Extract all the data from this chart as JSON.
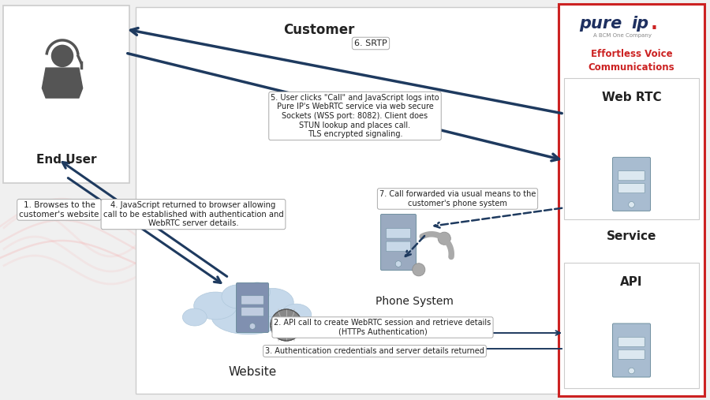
{
  "bg_color": "#f0f0f0",
  "arrow_color": "#1e3a5f",
  "red_border": "#cc2222",
  "server_color": "#a8bcd0",
  "server_slot_color": "#dce8f0",
  "cloud_color": "#c5d8ea",
  "cloud_edge": "#b0c8dc",
  "text_dark": "#222222",
  "text_red": "#cc2222",
  "text_pureip": "#1e3060",
  "label_1": "1. Browses to the\ncustomer's website",
  "label_2": "2. API call to create WebRTC session and retrieve details\n(HTTPs Authentication)",
  "label_3": "3. Authentication credentials and server details returned",
  "label_4": "4. JavaScript returned to browser allowing\ncall to be established with authentication and\nWebRTC server details.",
  "label_5": "5. User clicks \"Call\" and JavaScript logs into\nPure IP's WebRTC service via web secure\nSockets (WSS port: 8082). Client does\nSTUN lookup and places call.\nTLS encrypted signaling.",
  "label_6": "6. SRTP",
  "label_7": "7. Call forwarded via usual means to the\ncustomer's phone system",
  "end_user_label": "End User",
  "website_label": "Website",
  "phone_label": "Phone System",
  "webrtc_label": "Web RTC",
  "service_label": "Service",
  "api_label": "API",
  "customer_label": "Customer",
  "pureip_tagline": "Effortless Voice\nCommunications",
  "pureip_sub": "A BCM One Company"
}
